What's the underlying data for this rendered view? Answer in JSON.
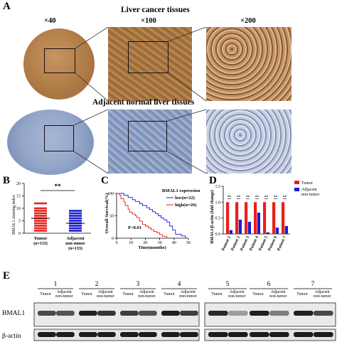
{
  "panel_labels": {
    "a": "A",
    "b": "B",
    "c": "C",
    "d": "D",
    "e": "E"
  },
  "panel_a": {
    "title_tumor": "Liver cancer tissues",
    "title_normal": "Adjacent normal liver tissues",
    "magnifications": [
      "×40",
      "×100",
      "×200"
    ]
  },
  "colors": {
    "tumor": "#e8201a",
    "adjacent": "#1b1bd6",
    "stain_brown": "#b47a3c",
    "stain_blue": "#8ea0c4"
  },
  "chart_data": [
    {
      "id": "B",
      "type": "scatter",
      "ylabel": "BMAL1 staining index",
      "categories": [
        "Tumor\n(n=133)",
        "Adjacent non-tumor\n(n=133)"
      ],
      "tick_labels": [
        "0",
        "5",
        "10",
        "15",
        "20"
      ],
      "ylim": [
        0,
        20
      ],
      "significance": "**",
      "groups": [
        {
          "name": "Tumor",
          "values": [
            1,
            2,
            3,
            4,
            5,
            6,
            7,
            8,
            9,
            10,
            12
          ],
          "mean": 6
        },
        {
          "name": "Adjacent non-tumor",
          "values": [
            1,
            2,
            3,
            4,
            5,
            6,
            7,
            8,
            9
          ],
          "mean": 4
        }
      ]
    },
    {
      "id": "C",
      "type": "line",
      "xlabel": "Time(months)",
      "ylabel": "Overall Survival(%)",
      "xticks": [
        "0",
        "10",
        "20",
        "30",
        "40",
        "50"
      ],
      "yticks": [
        "0",
        "50",
        "100"
      ],
      "xlim": [
        0,
        50
      ],
      "ylim": [
        0,
        100
      ],
      "legend_title": "BMAL1 expression",
      "annotation": "P<0.01",
      "series": [
        {
          "name": "low(n=22)",
          "x": [
            0,
            2,
            5,
            8,
            11,
            13,
            16,
            18,
            21,
            23,
            25,
            27,
            29,
            31,
            33,
            35,
            37,
            39,
            41,
            45,
            48
          ],
          "y": [
            100,
            100,
            96,
            91,
            86,
            82,
            77,
            73,
            68,
            64,
            59,
            55,
            50,
            45,
            41,
            36,
            27,
            18,
            9,
            5,
            0
          ]
        },
        {
          "name": "high(n=26)",
          "x": [
            0,
            2,
            3,
            5,
            6,
            8,
            9,
            11,
            13,
            14,
            16,
            18,
            20,
            22,
            24,
            26,
            28,
            30,
            32,
            35
          ],
          "y": [
            100,
            96,
            88,
            81,
            73,
            65,
            58,
            54,
            50,
            46,
            38,
            31,
            27,
            23,
            19,
            15,
            12,
            8,
            4,
            0
          ]
        }
      ]
    },
    {
      "id": "D",
      "type": "bar",
      "ylabel": "BMAL1/β-actin (fold change)",
      "yticks": [
        "0.0",
        "0.5",
        "1.0",
        "1.5"
      ],
      "ylim": [
        0,
        1.5
      ],
      "categories": [
        "Patient 1",
        "Patient 2",
        "Patient 3",
        "Patient 4",
        "Patient 5",
        "Patient 6",
        "Patient 7"
      ],
      "significance": "**",
      "series": [
        {
          "name": "Tumor",
          "values": [
            1,
            1,
            1,
            1,
            1,
            1,
            1
          ]
        },
        {
          "name": "Adjacent non-tumor",
          "values": [
            0.12,
            0.45,
            0.38,
            0.67,
            0.05,
            0.2,
            0.25
          ]
        }
      ]
    }
  ],
  "panel_e": {
    "patients": [
      "1",
      "2",
      "3",
      "4",
      "5",
      "6",
      "7"
    ],
    "lane_tumor": "Tumor",
    "lane_adjacent": "Adjacent non-tumor",
    "row_labels": [
      "BMAL1",
      "β-actin"
    ]
  }
}
